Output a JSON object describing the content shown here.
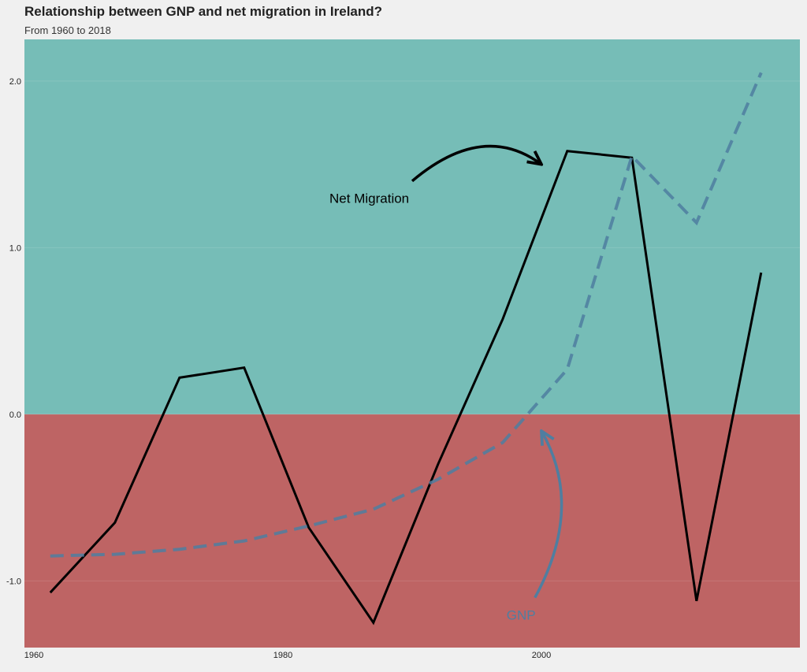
{
  "header": {
    "title": "Relationship between GNP and net migration in Ireland?",
    "subtitle": "From 1960 to 2018"
  },
  "colors": {
    "positive_band": "#76bdb7",
    "negative_band": "#be6464",
    "net_migration_line": "#000000",
    "gnp_line": "#4f7ea0"
  },
  "chart_data": {
    "type": "line",
    "title": "Relationship between GNP and net migration in Ireland?",
    "subtitle": "From 1960 to 2018",
    "xlabel": "",
    "ylabel": "",
    "xlim": [
      1960,
      2020
    ],
    "ylim": [
      -1.4,
      2.25
    ],
    "x_ticks": [
      1960,
      1980,
      2000
    ],
    "y_ticks": [
      2.0,
      1.0,
      0.0,
      -1.0
    ],
    "x_tick_labels": [
      "1960",
      "1980",
      "2000"
    ],
    "y_tick_labels": [
      "2.0",
      "1.0",
      "0.0",
      "-1.0"
    ],
    "grid": true,
    "background_bands": [
      {
        "from": 0,
        "to": 2.25,
        "color": "#76bdb7"
      },
      {
        "from": -1.4,
        "to": 0,
        "color": "#be6464"
      }
    ],
    "series": [
      {
        "key": "net_migration",
        "style": "solid",
        "color": "#000000",
        "x": [
          1962,
          1967,
          1972,
          1977,
          1982,
          1987,
          1992,
          1997,
          2002,
          2007,
          2012,
          2017
        ],
        "y": [
          -1.07,
          -0.65,
          0.22,
          0.28,
          -0.68,
          -1.25,
          -0.3,
          0.57,
          1.58,
          1.54,
          -1.12,
          0.85
        ]
      },
      {
        "key": "gnp",
        "style": "dashed",
        "color": "#4f7ea0",
        "x": [
          1962,
          1967,
          1972,
          1977,
          1982,
          1987,
          1992,
          1997,
          2002,
          2007,
          2012,
          2017
        ],
        "y": [
          -0.85,
          -0.84,
          -0.81,
          -0.76,
          -0.67,
          -0.57,
          -0.39,
          -0.17,
          0.27,
          1.55,
          1.15,
          2.05
        ]
      }
    ],
    "annotations": [
      {
        "text": "Net Migration",
        "color": "#000000",
        "x": 1983.6,
        "y": 1.29,
        "arrow_from": [
          1990,
          1.4
        ],
        "arrow_to": [
          2000,
          1.5
        ]
      },
      {
        "text": "GNP",
        "color": "#4f7ea0",
        "x": 1997.3,
        "y": -1.21,
        "arrow_from": [
          1999.5,
          -1.1
        ],
        "arrow_to": [
          2000,
          -0.1
        ]
      }
    ]
  }
}
